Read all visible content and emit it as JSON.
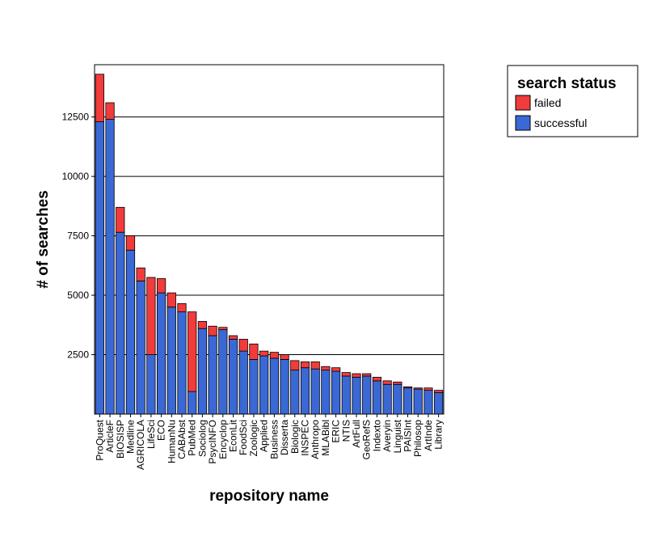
{
  "chart_data": {
    "type": "bar",
    "stacked": true,
    "title": "",
    "xlabel": "repository name",
    "ylabel": "# of searches",
    "ylim": [
      0,
      14700
    ],
    "yticks": [
      2500,
      5000,
      7500,
      10000,
      12500
    ],
    "ytick_labels": [
      "2500",
      "5000",
      "7500",
      "10000",
      "12500"
    ],
    "grid": "horizontal",
    "legend": {
      "title": "search status",
      "placement": "top-right outside"
    },
    "categories": [
      "ProQuest",
      "ArticleF",
      "BIOSISP",
      "Medline",
      "AGRICOLA",
      "LifeSci",
      "ECO",
      "HumanNu",
      "CABAbst",
      "PubMed",
      "Sociolog",
      "PsycINFO",
      "Encyclop",
      "EconLit",
      "FoodSci",
      "Zoologic",
      "Applied",
      "Business",
      "Disserta",
      "Biologic",
      "INSPEC",
      "Anthropo",
      "MLABibl",
      "ERIC",
      "NTIS",
      "ArtFull",
      "GeoRefS",
      "Indexto",
      "Averyin",
      "Linguist",
      "PAISInt",
      "Philosop",
      "ArtInde",
      "Library"
    ],
    "series": [
      {
        "name": "successful",
        "color": "#3a68d4",
        "values": [
          12300,
          12400,
          7650,
          6900,
          5600,
          2500,
          5100,
          4500,
          4300,
          950,
          3600,
          3300,
          3550,
          3150,
          2650,
          2300,
          2450,
          2350,
          2300,
          1850,
          1950,
          1900,
          1850,
          1800,
          1600,
          1550,
          1600,
          1400,
          1250,
          1250,
          1100,
          1050,
          1000,
          900
        ]
      },
      {
        "name": "failed",
        "color": "#f23b3b",
        "values": [
          2000,
          700,
          1050,
          600,
          550,
          3250,
          600,
          600,
          350,
          3350,
          300,
          400,
          100,
          150,
          500,
          650,
          200,
          250,
          200,
          400,
          250,
          300,
          150,
          150,
          150,
          150,
          100,
          150,
          150,
          100,
          50,
          50,
          100,
          100
        ]
      }
    ]
  }
}
